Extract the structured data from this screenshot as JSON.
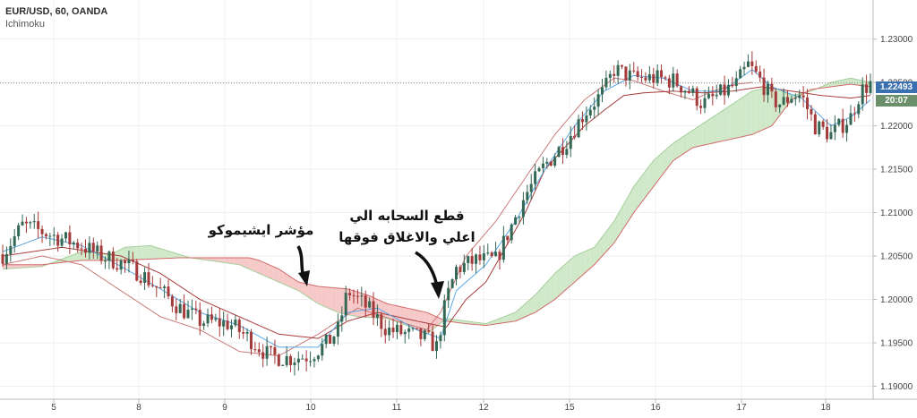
{
  "legend": {
    "symbol": "EUR/USD, 60, OANDA",
    "indicator": "Ichimoku"
  },
  "price_tags": {
    "last_price": "1.22493",
    "countdown": "20:07"
  },
  "annotations": {
    "ichimoku_label": "مؤشر ايشيموكو",
    "breakout_line1": "قطع السحابه الي",
    "breakout_line2": "اعلي والاغلاق فوقها"
  },
  "colors": {
    "up_candle": "#336854",
    "down_candle": "#a53a3a",
    "conversion_line": "#5aa8e6",
    "base_line": "#a83c3c",
    "lagging_span": "#c97a7a",
    "span_a": "#a5cf9b",
    "span_b": "#d36a6a",
    "kumo_bull": "#cfe8c8",
    "kumo_bear": "#f6c7c7",
    "last_price_bg": "#3a6fb0",
    "countdown_bg": "#6b8f6b"
  },
  "chart_data": {
    "type": "candlestick",
    "symbol": "EUR/USD",
    "timeframe": "60",
    "source": "OANDA",
    "indicator": "Ichimoku",
    "x_ticks": [
      "5",
      "8",
      "9",
      "10",
      "11",
      "12",
      "15",
      "16",
      "17",
      "18"
    ],
    "y_ticks": [
      "1.19000",
      "1.19500",
      "1.20000",
      "1.20500",
      "1.21000",
      "1.21500",
      "1.22000",
      "1.22500",
      "1.23000"
    ],
    "ylim": [
      1.1885,
      1.2345
    ],
    "last_price": 1.22493,
    "price_anchors": [
      [
        0,
        1.2052
      ],
      [
        10,
        1.2085
      ],
      [
        20,
        1.2078
      ],
      [
        30,
        1.207
      ],
      [
        40,
        1.2062
      ],
      [
        50,
        1.205
      ],
      [
        60,
        1.2042
      ],
      [
        70,
        1.203
      ],
      [
        80,
        1.201
      ],
      [
        90,
        1.199
      ],
      [
        100,
        1.1975
      ],
      [
        115,
        1.1972
      ],
      [
        125,
        1.1955
      ],
      [
        135,
        1.1935
      ],
      [
        145,
        1.1932
      ],
      [
        155,
        1.1935
      ],
      [
        165,
        1.195
      ],
      [
        170,
        1.1965
      ],
      [
        175,
        1.201
      ],
      [
        185,
        1.199
      ],
      [
        195,
        1.1965
      ],
      [
        205,
        1.196
      ],
      [
        215,
        1.1955
      ],
      [
        220,
        1.1945
      ],
      [
        225,
        1.2
      ],
      [
        230,
        1.2035
      ],
      [
        240,
        1.2045
      ],
      [
        250,
        1.2045
      ],
      [
        255,
        1.207
      ],
      [
        265,
        1.212
      ],
      [
        275,
        1.2155
      ],
      [
        285,
        1.218
      ],
      [
        295,
        1.2215
      ],
      [
        305,
        1.224
      ],
      [
        310,
        1.2265
      ],
      [
        320,
        1.2255
      ],
      [
        330,
        1.2255
      ],
      [
        340,
        1.2252
      ],
      [
        348,
        1.224
      ],
      [
        355,
        1.2225
      ],
      [
        365,
        1.2238
      ],
      [
        372,
        1.2248
      ],
      [
        378,
        1.227
      ],
      [
        385,
        1.225
      ],
      [
        390,
        1.223
      ],
      [
        395,
        1.2225
      ],
      [
        400,
        1.2235
      ],
      [
        405,
        1.2235
      ],
      [
        412,
        1.22
      ],
      [
        420,
        1.219
      ],
      [
        430,
        1.221
      ],
      [
        435,
        1.224
      ],
      [
        440,
        1.2249
      ]
    ],
    "cloud_span_a": [
      [
        0,
        1.2035
      ],
      [
        20,
        1.2038
      ],
      [
        40,
        1.2055
      ],
      [
        55,
        1.2052
      ],
      [
        62,
        1.206
      ],
      [
        75,
        1.2062
      ],
      [
        95,
        1.2048
      ],
      [
        120,
        1.204
      ],
      [
        135,
        1.2025
      ],
      [
        150,
        1.201
      ],
      [
        160,
        1.1995
      ],
      [
        170,
        1.1985
      ],
      [
        180,
        1.198
      ],
      [
        195,
        1.1978
      ],
      [
        205,
        1.197
      ],
      [
        215,
        1.196
      ],
      [
        225,
        1.1978
      ],
      [
        235,
        1.1975
      ],
      [
        245,
        1.1972
      ],
      [
        260,
        1.1985
      ],
      [
        270,
        1.2005
      ],
      [
        280,
        1.203
      ],
      [
        290,
        1.205
      ],
      [
        300,
        1.206
      ],
      [
        310,
        1.209
      ],
      [
        320,
        1.213
      ],
      [
        330,
        1.216
      ],
      [
        340,
        1.218
      ],
      [
        350,
        1.2195
      ],
      [
        360,
        1.221
      ],
      [
        370,
        1.2225
      ],
      [
        380,
        1.224
      ],
      [
        390,
        1.2245
      ],
      [
        400,
        1.2235
      ],
      [
        410,
        1.224
      ],
      [
        420,
        1.225
      ],
      [
        430,
        1.2255
      ],
      [
        440,
        1.225
      ]
    ],
    "cloud_span_b": [
      [
        0,
        1.204
      ],
      [
        20,
        1.204
      ],
      [
        40,
        1.2045
      ],
      [
        60,
        1.2045
      ],
      [
        90,
        1.2048
      ],
      [
        110,
        1.2048
      ],
      [
        125,
        1.2048
      ],
      [
        130,
        1.2045
      ],
      [
        140,
        1.2035
      ],
      [
        150,
        1.202
      ],
      [
        160,
        1.2015
      ],
      [
        175,
        1.2012
      ],
      [
        185,
        1.2005
      ],
      [
        195,
        1.1995
      ],
      [
        205,
        1.199
      ],
      [
        215,
        1.1985
      ],
      [
        225,
        1.1975
      ],
      [
        235,
        1.1972
      ],
      [
        245,
        1.197
      ],
      [
        260,
        1.1975
      ],
      [
        270,
        1.1985
      ],
      [
        280,
        1.2
      ],
      [
        290,
        1.202
      ],
      [
        300,
        1.204
      ],
      [
        310,
        1.2065
      ],
      [
        320,
        1.21
      ],
      [
        330,
        1.213
      ],
      [
        340,
        1.216
      ],
      [
        350,
        1.2175
      ],
      [
        360,
        1.218
      ],
      [
        370,
        1.2185
      ],
      [
        380,
        1.219
      ],
      [
        390,
        1.22
      ],
      [
        400,
        1.223
      ],
      [
        410,
        1.2242
      ],
      [
        420,
        1.2245
      ],
      [
        430,
        1.2248
      ],
      [
        440,
        1.2245
      ]
    ],
    "base_line": [
      [
        0,
        1.205
      ],
      [
        30,
        1.206
      ],
      [
        60,
        1.205
      ],
      [
        80,
        1.203
      ],
      [
        100,
        1.2
      ],
      [
        120,
        1.198
      ],
      [
        140,
        1.196
      ],
      [
        160,
        1.1955
      ],
      [
        175,
        1.1975
      ],
      [
        190,
        1.1985
      ],
      [
        210,
        1.1975
      ],
      [
        225,
        1.1968
      ],
      [
        235,
        1.2
      ],
      [
        245,
        1.202
      ],
      [
        255,
        1.206
      ],
      [
        265,
        1.21
      ],
      [
        275,
        1.215
      ],
      [
        285,
        1.2175
      ],
      [
        295,
        1.22
      ],
      [
        305,
        1.2218
      ],
      [
        315,
        1.2235
      ],
      [
        325,
        1.2238
      ],
      [
        340,
        1.224
      ],
      [
        355,
        1.2238
      ],
      [
        370,
        1.224
      ],
      [
        385,
        1.2245
      ],
      [
        400,
        1.224
      ],
      [
        415,
        1.2235
      ],
      [
        430,
        1.2232
      ],
      [
        440,
        1.2235
      ]
    ],
    "conversion_line": [
      [
        0,
        1.2055
      ],
      [
        20,
        1.2072
      ],
      [
        40,
        1.2062
      ],
      [
        60,
        1.2038
      ],
      [
        80,
        1.2012
      ],
      [
        100,
        1.1985
      ],
      [
        120,
        1.197
      ],
      [
        140,
        1.1945
      ],
      [
        160,
        1.1945
      ],
      [
        175,
        1.1985
      ],
      [
        190,
        1.199
      ],
      [
        210,
        1.1965
      ],
      [
        222,
        1.1955
      ],
      [
        230,
        1.201
      ],
      [
        245,
        1.204
      ],
      [
        260,
        1.209
      ],
      [
        275,
        1.215
      ],
      [
        290,
        1.22
      ],
      [
        305,
        1.224
      ],
      [
        320,
        1.2258
      ],
      [
        335,
        1.2255
      ],
      [
        350,
        1.224
      ],
      [
        365,
        1.224
      ],
      [
        380,
        1.2265
      ],
      [
        390,
        1.2245
      ],
      [
        405,
        1.2232
      ],
      [
        420,
        1.22
      ],
      [
        430,
        1.221
      ],
      [
        440,
        1.223
      ]
    ],
    "lagging_span": [
      [
        0,
        1.204
      ],
      [
        20,
        1.205
      ],
      [
        40,
        1.204
      ],
      [
        60,
        1.201
      ],
      [
        80,
        1.198
      ],
      [
        100,
        1.1965
      ],
      [
        120,
        1.194
      ],
      [
        140,
        1.1935
      ],
      [
        160,
        1.196
      ],
      [
        180,
        1.199
      ],
      [
        200,
        1.1975
      ],
      [
        215,
        1.1965
      ],
      [
        222,
        1.1985
      ],
      [
        235,
        1.205
      ],
      [
        250,
        1.209
      ],
      [
        265,
        1.214
      ],
      [
        280,
        1.219
      ],
      [
        295,
        1.223
      ],
      [
        310,
        1.2255
      ],
      [
        320,
        1.2252
      ],
      [
        335,
        1.224
      ],
      [
        350,
        1.223
      ],
      [
        360,
        1.224
      ],
      [
        372,
        1.2248
      ],
      [
        380,
        1.225
      ]
    ]
  }
}
